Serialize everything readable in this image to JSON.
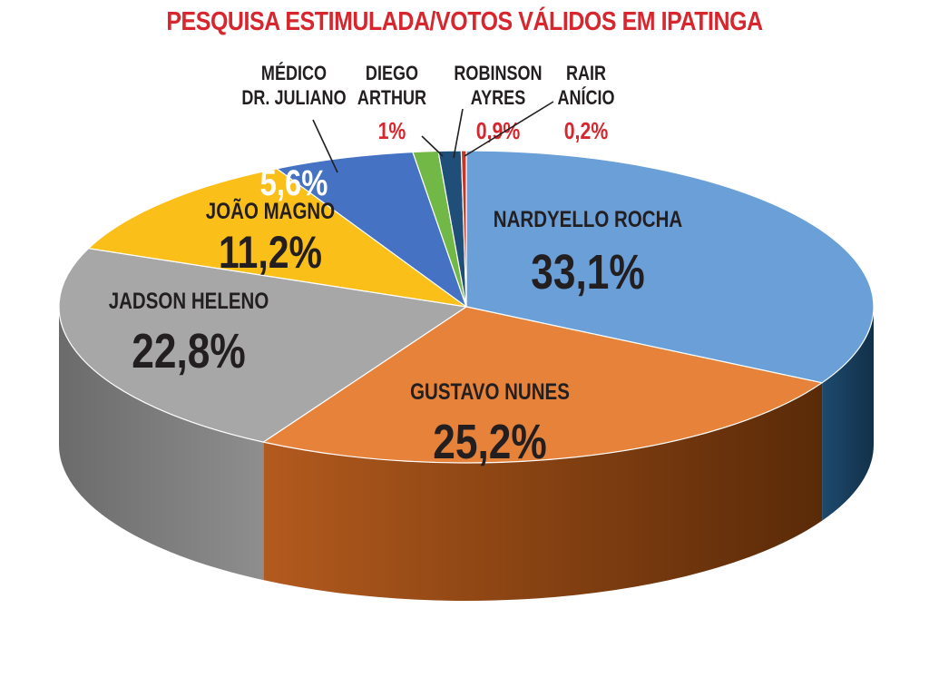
{
  "colors": {
    "title": "#d7262e",
    "small_value": "#d7262e",
    "dark_text": "#231f20",
    "white_text": "#ffffff"
  },
  "chart_data": {
    "type": "pie",
    "title": "PESQUISA ESTIMULADA/VOTOS VÁLIDOS EM IPATINGA",
    "slices": [
      {
        "label": "NARDYELLO ROCHA",
        "value": 33.1,
        "value_label": "33,1%",
        "color": "#6a9fd7"
      },
      {
        "label": "GUSTAVO NUNES",
        "value": 25.2,
        "value_label": "25,2%",
        "color": "#e6823a"
      },
      {
        "label": "JADSON HELENO",
        "value": 22.8,
        "value_label": "22,8%",
        "color": "#a7a7a7"
      },
      {
        "label": "JOÃO MAGNO",
        "value": 11.2,
        "value_label": "11,2%",
        "color": "#fbbf1a"
      },
      {
        "label": "MÉDICO DR. JULIANO",
        "label_lines": [
          "MÉDICO",
          "DR. JULIANO"
        ],
        "value": 5.6,
        "value_label": "5,6%",
        "color": "#4572c3"
      },
      {
        "label": "DIEGO ARTHUR",
        "label_lines": [
          "DIEGO",
          "ARTHUR"
        ],
        "value": 1.0,
        "value_label": "1%",
        "color": "#72b847"
      },
      {
        "label": "ROBINSON AYRES",
        "label_lines": [
          "ROBINSON",
          "AYRES"
        ],
        "value": 0.9,
        "value_label": "0,9%",
        "color": "#1f4e79"
      },
      {
        "label": "RAIR ANÍCIO",
        "label_lines": [
          "RAIR",
          "ANÍCIO"
        ],
        "value": 0.2,
        "value_label": "0,2%",
        "color": "#c0392b"
      }
    ]
  }
}
